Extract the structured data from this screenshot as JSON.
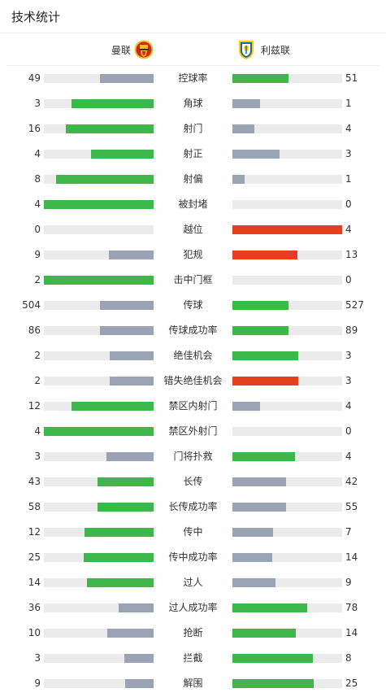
{
  "header": {
    "title": "技术统计"
  },
  "teams": {
    "home": {
      "name": "曼联"
    },
    "away": {
      "name": "利兹联"
    }
  },
  "colors": {
    "win": "#3db74a",
    "lose": "#9aa3b3",
    "alert": "#e2401f",
    "track": "#ebebeb"
  },
  "stats": [
    {
      "label": "控球率",
      "home": "49",
      "away": "51",
      "home_frac": 0.49,
      "away_frac": 0.51,
      "home_color": "lose",
      "away_color": "win"
    },
    {
      "label": "角球",
      "home": "3",
      "away": "1",
      "home_frac": 0.75,
      "away_frac": 0.25,
      "home_color": "win",
      "away_color": "lose"
    },
    {
      "label": "射门",
      "home": "16",
      "away": "4",
      "home_frac": 0.8,
      "away_frac": 0.2,
      "home_color": "win",
      "away_color": "lose"
    },
    {
      "label": "射正",
      "home": "4",
      "away": "3",
      "home_frac": 0.57,
      "away_frac": 0.43,
      "home_color": "win",
      "away_color": "lose"
    },
    {
      "label": "射偏",
      "home": "8",
      "away": "1",
      "home_frac": 0.89,
      "away_frac": 0.11,
      "home_color": "win",
      "away_color": "lose"
    },
    {
      "label": "被封堵",
      "home": "4",
      "away": "0",
      "home_frac": 1.0,
      "away_frac": 0.0,
      "home_color": "win",
      "away_color": "lose"
    },
    {
      "label": "越位",
      "home": "0",
      "away": "4",
      "home_frac": 0.0,
      "away_frac": 1.0,
      "home_color": "win",
      "away_color": "alert"
    },
    {
      "label": "犯规",
      "home": "9",
      "away": "13",
      "home_frac": 0.41,
      "away_frac": 0.59,
      "home_color": "lose",
      "away_color": "alert"
    },
    {
      "label": "击中门框",
      "home": "2",
      "away": "0",
      "home_frac": 1.0,
      "away_frac": 0.0,
      "home_color": "win",
      "away_color": "lose"
    },
    {
      "label": "传球",
      "home": "504",
      "away": "527",
      "home_frac": 0.49,
      "away_frac": 0.51,
      "home_color": "lose",
      "away_color": "win"
    },
    {
      "label": "传球成功率",
      "home": "86",
      "away": "89",
      "home_frac": 0.49,
      "away_frac": 0.51,
      "home_color": "lose",
      "away_color": "win"
    },
    {
      "label": "绝佳机会",
      "home": "2",
      "away": "3",
      "home_frac": 0.4,
      "away_frac": 0.6,
      "home_color": "lose",
      "away_color": "win"
    },
    {
      "label": "错失绝佳机会",
      "home": "2",
      "away": "3",
      "home_frac": 0.4,
      "away_frac": 0.6,
      "home_color": "lose",
      "away_color": "alert"
    },
    {
      "label": "禁区内射门",
      "home": "12",
      "away": "4",
      "home_frac": 0.75,
      "away_frac": 0.25,
      "home_color": "win",
      "away_color": "lose"
    },
    {
      "label": "禁区外射门",
      "home": "4",
      "away": "0",
      "home_frac": 1.0,
      "away_frac": 0.0,
      "home_color": "win",
      "away_color": "lose"
    },
    {
      "label": "门将扑救",
      "home": "3",
      "away": "4",
      "home_frac": 0.43,
      "away_frac": 0.57,
      "home_color": "lose",
      "away_color": "win"
    },
    {
      "label": "长传",
      "home": "43",
      "away": "42",
      "home_frac": 0.51,
      "away_frac": 0.49,
      "home_color": "win",
      "away_color": "lose"
    },
    {
      "label": "长传成功率",
      "home": "58",
      "away": "55",
      "home_frac": 0.51,
      "away_frac": 0.49,
      "home_color": "win",
      "away_color": "lose"
    },
    {
      "label": "传中",
      "home": "12",
      "away": "7",
      "home_frac": 0.63,
      "away_frac": 0.37,
      "home_color": "win",
      "away_color": "lose"
    },
    {
      "label": "传中成功率",
      "home": "25",
      "away": "14",
      "home_frac": 0.64,
      "away_frac": 0.36,
      "home_color": "win",
      "away_color": "lose"
    },
    {
      "label": "过人",
      "home": "14",
      "away": "9",
      "home_frac": 0.61,
      "away_frac": 0.39,
      "home_color": "win",
      "away_color": "lose"
    },
    {
      "label": "过人成功率",
      "home": "36",
      "away": "78",
      "home_frac": 0.32,
      "away_frac": 0.68,
      "home_color": "lose",
      "away_color": "win"
    },
    {
      "label": "抢断",
      "home": "10",
      "away": "14",
      "home_frac": 0.42,
      "away_frac": 0.58,
      "home_color": "lose",
      "away_color": "win"
    },
    {
      "label": "拦截",
      "home": "3",
      "away": "8",
      "home_frac": 0.27,
      "away_frac": 0.73,
      "home_color": "lose",
      "away_color": "win"
    },
    {
      "label": "解围",
      "home": "9",
      "away": "25",
      "home_frac": 0.26,
      "away_frac": 0.74,
      "home_color": "lose",
      "away_color": "win"
    }
  ]
}
